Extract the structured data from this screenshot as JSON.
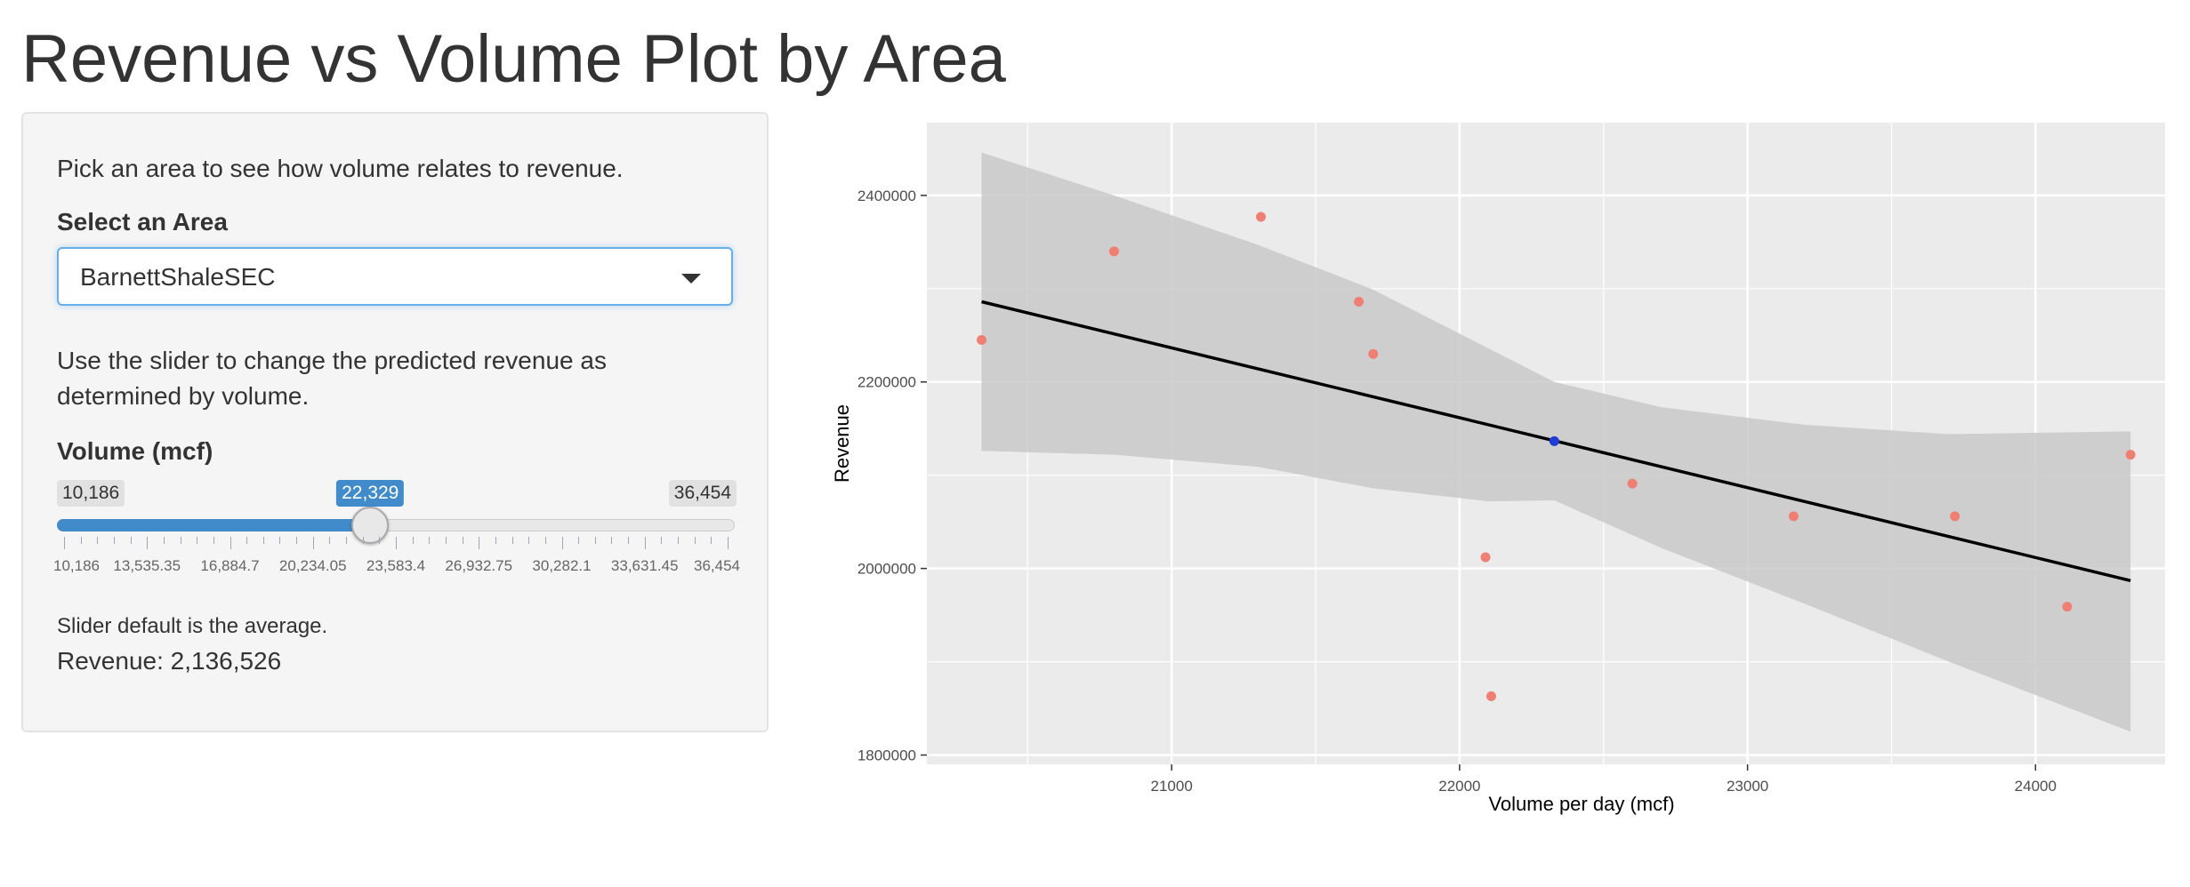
{
  "page": {
    "title": "Revenue vs Volume Plot by Area"
  },
  "sidebar": {
    "intro": "Pick an area to see how volume relates to revenue.",
    "area_label": "Select an Area",
    "area_selected": "BarnettShaleSEC",
    "slider_help": "Use the slider to change the predicted revenue as determined by volume.",
    "volume_label": "Volume (mcf)",
    "slider": {
      "min_label": "10,186",
      "max_label": "36,454",
      "value_label": "22,329",
      "min": 10186,
      "max": 36454,
      "value": 22329,
      "tick_labels": [
        "10,186",
        "13,535.35",
        "16,884.7",
        "20,234.05",
        "23,583.4",
        "26,932.75",
        "30,282.1",
        "33,631.45",
        "36,454"
      ]
    },
    "note": "Slider default is the average.",
    "revenue_text": "Revenue: 2,136,526"
  },
  "chart_data": {
    "type": "scatter",
    "title": "",
    "xlabel": "Volume per day (mcf)",
    "ylabel": "Revenue",
    "xlim": [
      20150,
      24450
    ],
    "ylim": [
      1790000,
      2478000
    ],
    "x_ticks": [
      21000,
      22000,
      23000,
      24000
    ],
    "y_ticks": [
      1800000,
      2000000,
      2200000,
      2400000
    ],
    "grid": true,
    "points": [
      {
        "x": 20340,
        "y": 2245000
      },
      {
        "x": 20800,
        "y": 2340000
      },
      {
        "x": 21310,
        "y": 2377000
      },
      {
        "x": 21650,
        "y": 2286000
      },
      {
        "x": 21700,
        "y": 2230000
      },
      {
        "x": 22090,
        "y": 2012000
      },
      {
        "x": 22110,
        "y": 1863000
      },
      {
        "x": 22600,
        "y": 2091000
      },
      {
        "x": 23160,
        "y": 2056000
      },
      {
        "x": 23720,
        "y": 2056000
      },
      {
        "x": 24110,
        "y": 1959000
      },
      {
        "x": 24330,
        "y": 2122000
      }
    ],
    "prediction": {
      "x": 22329,
      "y": 2136526
    },
    "fit_line": [
      {
        "x": 20340,
        "y": 2286000
      },
      {
        "x": 24330,
        "y": 1987000
      }
    ],
    "confidence_band": {
      "x": [
        20340,
        20800,
        21300,
        21700,
        22100,
        22329,
        22700,
        23200,
        23700,
        24330
      ],
      "upper": [
        2446000,
        2400000,
        2347000,
        2299000,
        2236000,
        2200000,
        2173000,
        2154000,
        2144000,
        2147000
      ],
      "lower": [
        2126000,
        2122000,
        2109000,
        2086000,
        2072000,
        2073000,
        2022000,
        1962000,
        1900000,
        1825000
      ]
    },
    "colors": {
      "panel": "#ebebeb",
      "grid": "#ffffff",
      "points": "#f07f73",
      "prediction": "#1f3dd6",
      "line": "#000000",
      "band": "#c9c9c9"
    }
  }
}
